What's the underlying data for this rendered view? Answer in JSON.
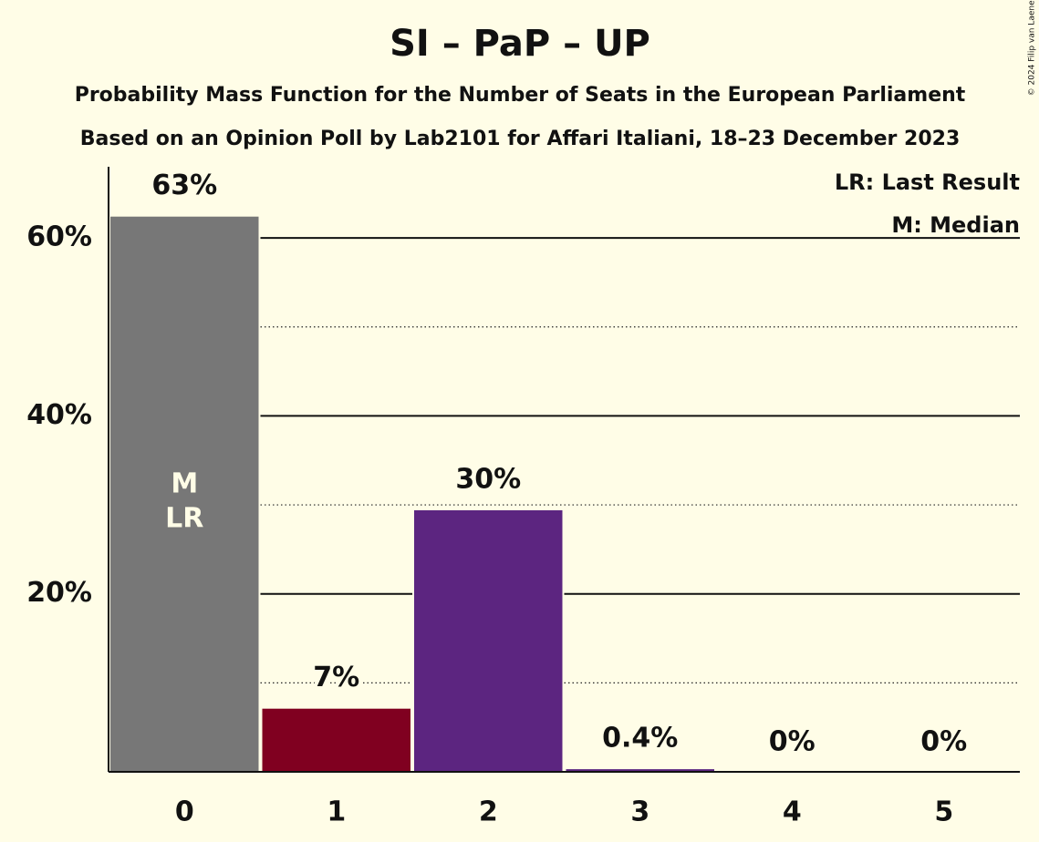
{
  "chart_data": {
    "type": "bar",
    "title": "SI – PaP – UP",
    "subtitle": "Probability Mass Function for the Number of Seats in the European Parliament",
    "subtitle2": "Based on an Opinion Poll by Lab2101 for Affari Italiani, 18–23 December 2023",
    "copyright": "© 2024 Filip van Laenen",
    "legend": [
      "LR: Last Result",
      "M: Median"
    ],
    "categories": [
      "0",
      "1",
      "2",
      "3",
      "4",
      "5"
    ],
    "values": [
      62.5,
      7.2,
      29.5,
      0.4,
      0,
      0
    ],
    "value_labels": [
      "63%",
      "7%",
      "30%",
      "0.4%",
      "0%",
      "0%"
    ],
    "colors": [
      "#777777",
      "#800020",
      "#5c2580",
      "#5c2580",
      "#5c2580",
      "#5c2580"
    ],
    "bar_annotations": [
      {
        "index": 0,
        "lines": [
          "M",
          "LR"
        ]
      }
    ],
    "ylim": [
      0,
      68
    ],
    "yticks": [
      {
        "value": 20,
        "label": "20%"
      },
      {
        "value": 40,
        "label": "40%"
      },
      {
        "value": 60,
        "label": "60%"
      }
    ],
    "minor_yticks": [
      10,
      30,
      50
    ],
    "grid": true
  }
}
